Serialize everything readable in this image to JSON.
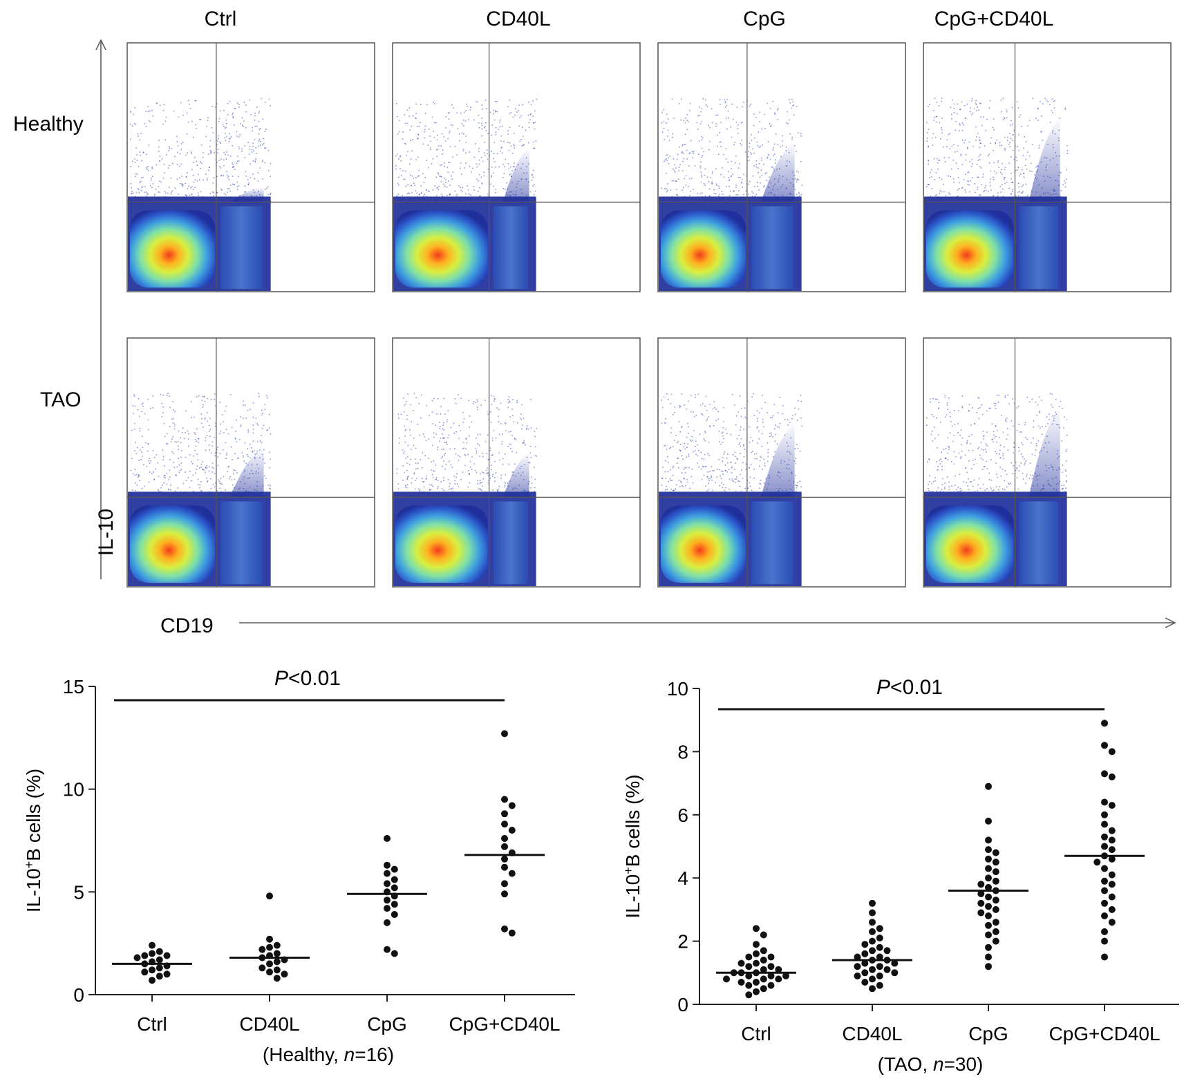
{
  "flow_panel": {
    "column_labels": [
      "Ctrl",
      "CD40L",
      "CpG",
      "CpG+CD40L"
    ],
    "row_labels": [
      "Healthy",
      "TAO"
    ],
    "y_axis_label": "IL-10",
    "x_axis_label": "CD19",
    "colormap": [
      "#1f2f9b",
      "#2b57c9",
      "#3fa0e0",
      "#7fe0a8",
      "#d9ef3f",
      "#ffb020",
      "#f23b1c"
    ]
  },
  "chart_data": [
    {
      "type": "scatter",
      "ylabel_main": "IL-10",
      "ylabel_sup": "+",
      "ylabel_rest": "B cells (%)",
      "xlabel_prefix": "(Healthy, ",
      "xlabel_n": "n",
      "xlabel_suffix": "=16)",
      "categories": [
        "Ctrl",
        "CD40L",
        "CpG",
        "CpG+CD40L"
      ],
      "ylim": [
        0,
        15
      ],
      "yticks": [
        "0",
        "5",
        "10",
        "15"
      ],
      "ytick_values": [
        0,
        5,
        10,
        15
      ],
      "significance": {
        "p_letter": "P",
        "p_rest": "<0.01",
        "from_category": 0,
        "to_category": 3
      },
      "series": [
        {
          "category": "Ctrl",
          "mean": 1.5,
          "values": [
            2.4,
            2.1,
            2.0,
            1.9,
            1.9,
            1.8,
            1.7,
            1.6,
            1.5,
            1.4,
            1.3,
            1.2,
            1.1,
            1.0,
            0.9,
            0.7
          ]
        },
        {
          "category": "CD40L",
          "mean": 1.8,
          "values": [
            4.8,
            2.7,
            2.4,
            2.3,
            2.2,
            2.0,
            1.9,
            1.8,
            1.7,
            1.6,
            1.5,
            1.3,
            1.2,
            1.1,
            1.0,
            0.8
          ]
        },
        {
          "category": "CpG",
          "mean": 4.9,
          "values": [
            7.6,
            6.3,
            6.1,
            5.9,
            5.6,
            5.4,
            5.2,
            5.0,
            4.8,
            4.6,
            4.4,
            4.2,
            3.9,
            3.5,
            2.2,
            2.0
          ]
        },
        {
          "category": "CpG+CD40L",
          "mean": 6.8,
          "values": [
            12.7,
            9.5,
            9.2,
            8.8,
            8.3,
            8.0,
            7.6,
            7.2,
            6.9,
            6.6,
            6.2,
            5.9,
            5.4,
            4.9,
            3.2,
            3.0
          ]
        }
      ]
    },
    {
      "type": "scatter",
      "ylabel_main": "IL-10",
      "ylabel_sup": "+",
      "ylabel_rest": "B cells (%)",
      "xlabel_prefix": "(TAO, ",
      "xlabel_n": "n",
      "xlabel_suffix": "=30)",
      "categories": [
        "Ctrl",
        "CD40L",
        "CpG",
        "CpG+CD40L"
      ],
      "ylim": [
        0,
        10
      ],
      "yticks": [
        "0",
        "2",
        "4",
        "6",
        "8",
        "10"
      ],
      "ytick_values": [
        0,
        2,
        4,
        6,
        8,
        10
      ],
      "significance": {
        "p_letter": "P",
        "p_rest": "<0.01",
        "from_category": 0,
        "to_category": 3
      },
      "series": [
        {
          "category": "Ctrl",
          "mean": 1.0,
          "values": [
            2.4,
            2.2,
            1.9,
            1.7,
            1.6,
            1.5,
            1.5,
            1.4,
            1.3,
            1.3,
            1.2,
            1.2,
            1.1,
            1.1,
            1.0,
            1.0,
            1.0,
            0.9,
            0.9,
            0.9,
            0.8,
            0.8,
            0.8,
            0.7,
            0.7,
            0.6,
            0.6,
            0.5,
            0.4,
            0.3
          ]
        },
        {
          "category": "CD40L",
          "mean": 1.4,
          "values": [
            3.2,
            2.9,
            2.6,
            2.4,
            2.3,
            2.1,
            2.0,
            1.9,
            1.8,
            1.7,
            1.7,
            1.6,
            1.5,
            1.5,
            1.4,
            1.4,
            1.3,
            1.3,
            1.2,
            1.2,
            1.1,
            1.1,
            1.0,
            1.0,
            0.9,
            0.9,
            0.8,
            0.7,
            0.6,
            0.5
          ]
        },
        {
          "category": "CpG",
          "mean": 3.6,
          "values": [
            6.9,
            5.8,
            5.2,
            4.9,
            4.8,
            4.6,
            4.5,
            4.3,
            4.2,
            4.0,
            3.9,
            3.8,
            3.7,
            3.6,
            3.5,
            3.4,
            3.3,
            3.2,
            3.1,
            3.0,
            2.9,
            2.8,
            2.6,
            2.5,
            2.3,
            2.2,
            2.0,
            1.8,
            1.5,
            1.2
          ]
        },
        {
          "category": "CpG+CD40L",
          "mean": 4.7,
          "values": [
            8.9,
            8.2,
            8.0,
            7.3,
            7.2,
            6.4,
            6.3,
            6.0,
            5.7,
            5.5,
            5.3,
            5.2,
            5.0,
            4.9,
            4.7,
            4.6,
            4.5,
            4.3,
            4.1,
            3.9,
            3.8,
            3.6,
            3.4,
            3.2,
            3.0,
            2.8,
            2.6,
            2.3,
            2.0,
            1.5
          ]
        }
      ]
    }
  ]
}
